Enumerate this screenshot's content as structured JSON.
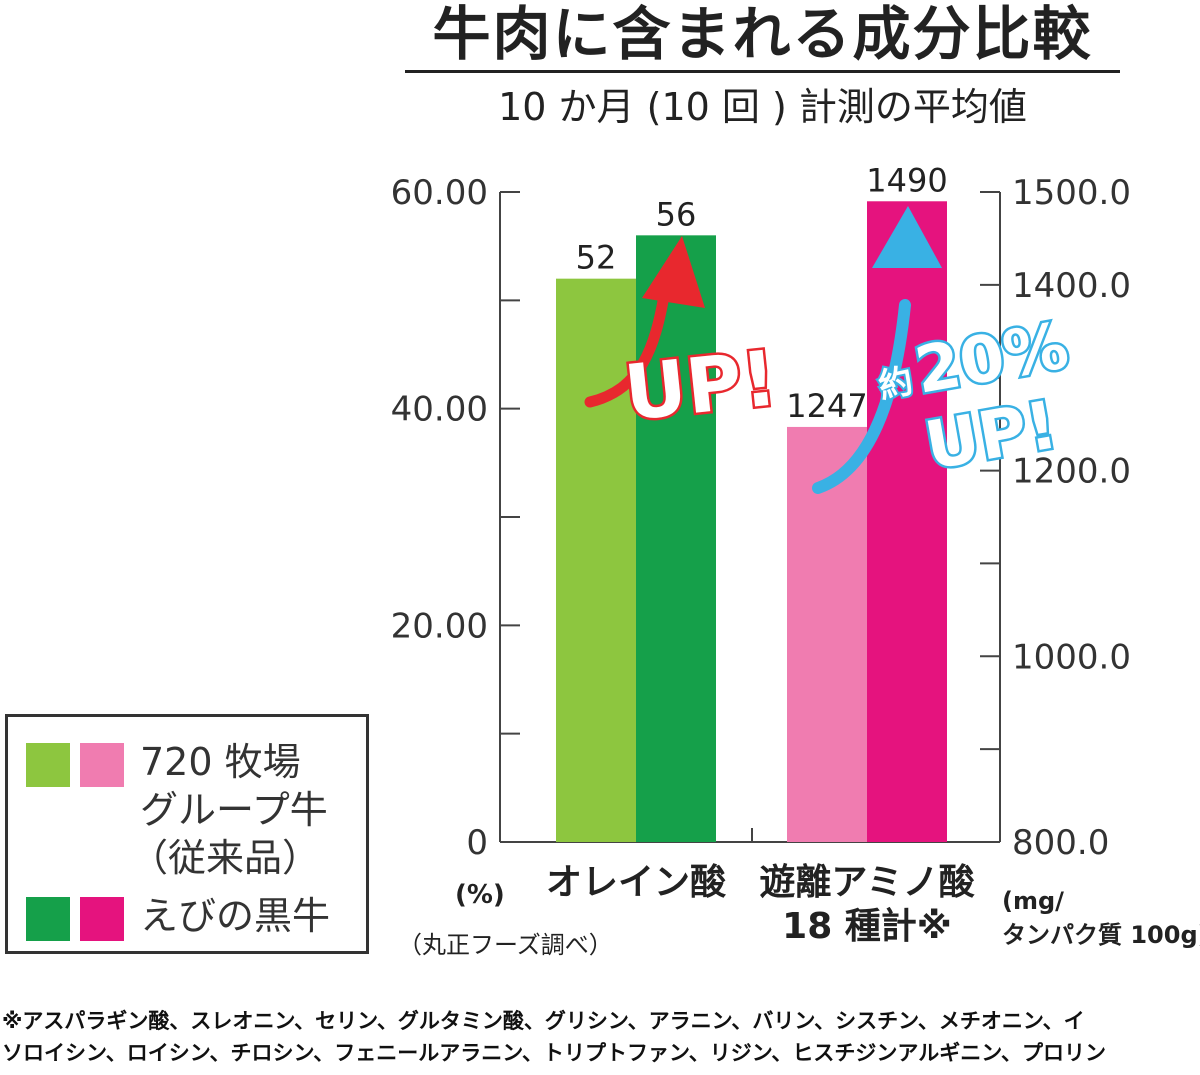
{
  "chart_data": {
    "type": "bar",
    "title": "牛肉に含まれる成分比較",
    "subtitle": "10 か月 (10 回 ) 計測の平均値",
    "categories": [
      "オレイン酸",
      "遊離アミノ酸\n18 種計※"
    ],
    "category_lines": [
      [
        "オレイン酸"
      ],
      [
        "遊離アミノ酸",
        "18 種計※"
      ]
    ],
    "series": [
      {
        "name": "720 牧場グループ牛（従来品）",
        "values": [
          52,
          1247
        ],
        "colors": [
          "#8dc63f",
          "#f07cb0"
        ]
      },
      {
        "name": "えびの黒牛",
        "values": [
          56,
          1490
        ],
        "colors": [
          "#15a04a",
          "#e5137e"
        ]
      }
    ],
    "value_labels": [
      [
        "52",
        "1247"
      ],
      [
        "56",
        "1490"
      ]
    ],
    "y_left": {
      "unit": "(%)",
      "range": [
        0,
        60
      ],
      "ticks": [
        "0",
        "20.00",
        "40.00",
        "60.00"
      ],
      "tick_values": [
        0,
        20,
        40,
        60
      ]
    },
    "y_right": {
      "unit_lines": [
        "(mg/",
        "タンパク質 100g)"
      ],
      "range": [
        800,
        1500
      ],
      "ticks": [
        "800.0",
        "1000.0",
        "1200.0",
        "1400.0",
        "1500.0"
      ],
      "tick_values": [
        800,
        1000,
        1200,
        1400,
        1500
      ]
    },
    "annotations": [
      {
        "text": "UP!",
        "color": "#e8282e"
      },
      {
        "prefix": "約",
        "text": "20%",
        "text2": "UP!",
        "color": "#39b1e4"
      }
    ],
    "source": "（丸正フーズ調べ）",
    "legend_placement": "bottom-left",
    "grid": false
  },
  "legend": {
    "item1_lines": [
      "720 牧場",
      "グループ牛",
      "（従来品）"
    ],
    "item2": "えびの黒牛",
    "colors1": [
      "#8dc63f",
      "#f07cb0"
    ],
    "colors2": [
      "#15a04a",
      "#e5137e"
    ]
  },
  "footnote": [
    "※アスパラギン酸、スレオニン、セリン、グルタミン酸、グリシン、アラニン、バリン、シスチン、メチオニン、イ",
    "ソロイシン、ロイシン、チロシン、フェニールアラニン、トリプトファン、リジン、ヒスチジンアルギニン、プロリン"
  ]
}
